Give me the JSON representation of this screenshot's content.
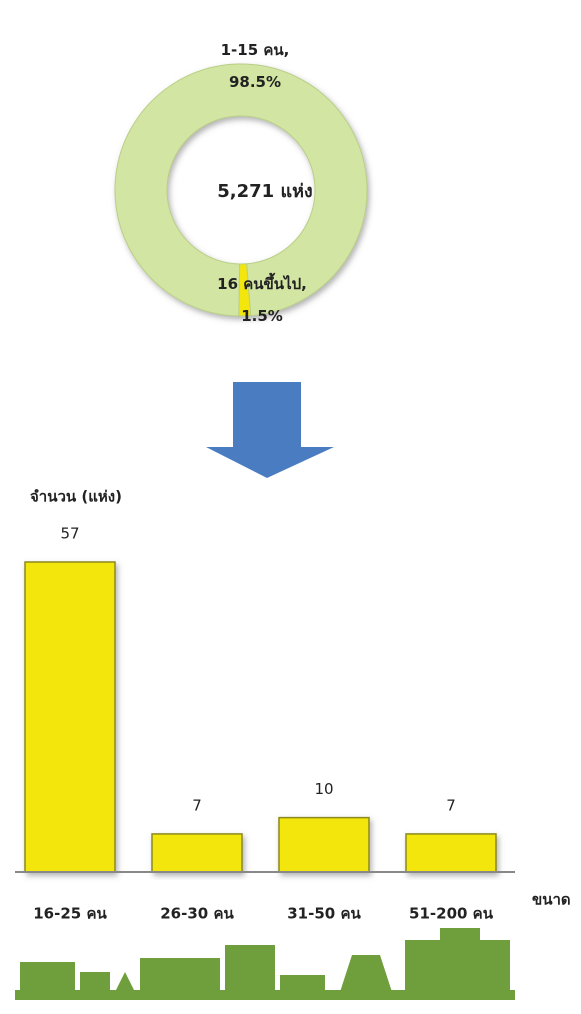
{
  "chart_data": [
    {
      "type": "donut",
      "center_label": "5,271 แห่ง",
      "categories": [
        "1-15 คน,",
        "16 คนขึ้นไป,"
      ],
      "values": [
        98.5,
        1.5
      ],
      "value_labels": [
        "98.5%",
        "1.5%"
      ],
      "colors": [
        "#d3e5a3",
        "#f3e60e"
      ]
    },
    {
      "type": "bar",
      "ylabel": "จำนวน (แห่ง)",
      "xlabel": "ขนาด",
      "categories": [
        "16-25 คน",
        "26-30 คน",
        "31-50 คน",
        "51-200 คน"
      ],
      "values": [
        57,
        7,
        10,
        7
      ],
      "color": "#f3e60e",
      "ylim": [
        0,
        57
      ]
    }
  ]
}
